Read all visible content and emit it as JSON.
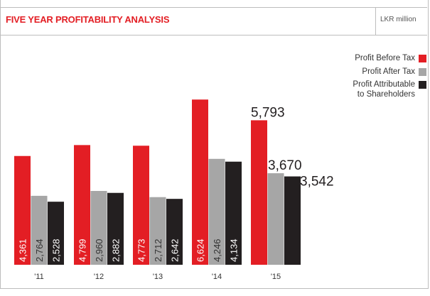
{
  "header": {
    "title": "FIVE YEAR PROFITABILITY ANALYSIS",
    "unit": "LKR million"
  },
  "colors": {
    "accent": "#e31e24",
    "series": [
      "#e31e24",
      "#a6a6a6",
      "#231f20"
    ]
  },
  "chart_data": {
    "type": "bar",
    "categories": [
      "'11",
      "'12",
      "'13",
      "'14",
      "'15"
    ],
    "series": [
      {
        "name": "Profit Before Tax",
        "values": [
          4361,
          4799,
          4773,
          6624,
          5793
        ]
      },
      {
        "name": "Profit After Tax",
        "values": [
          2764,
          2960,
          2712,
          4246,
          3670
        ]
      },
      {
        "name": "Profit Attributable to Shareholders",
        "values": [
          2528,
          2882,
          2642,
          4134,
          3542
        ]
      }
    ],
    "value_labels": [
      [
        "4,361",
        "4,799",
        "4,773",
        "6,624",
        "5,793"
      ],
      [
        "2,764",
        "2,960",
        "2,712",
        "4,246",
        "3,670"
      ],
      [
        "2,528",
        "2,882",
        "2,642",
        "4,134",
        "3,542"
      ]
    ],
    "legend": [
      "Profit Before Tax",
      "Profit After Tax",
      "Profit Attributable\nto Shareholders"
    ],
    "legend_position": "top-right",
    "ylim": [
      0,
      7200
    ],
    "grid": false,
    "xlabel": "",
    "ylabel": ""
  }
}
